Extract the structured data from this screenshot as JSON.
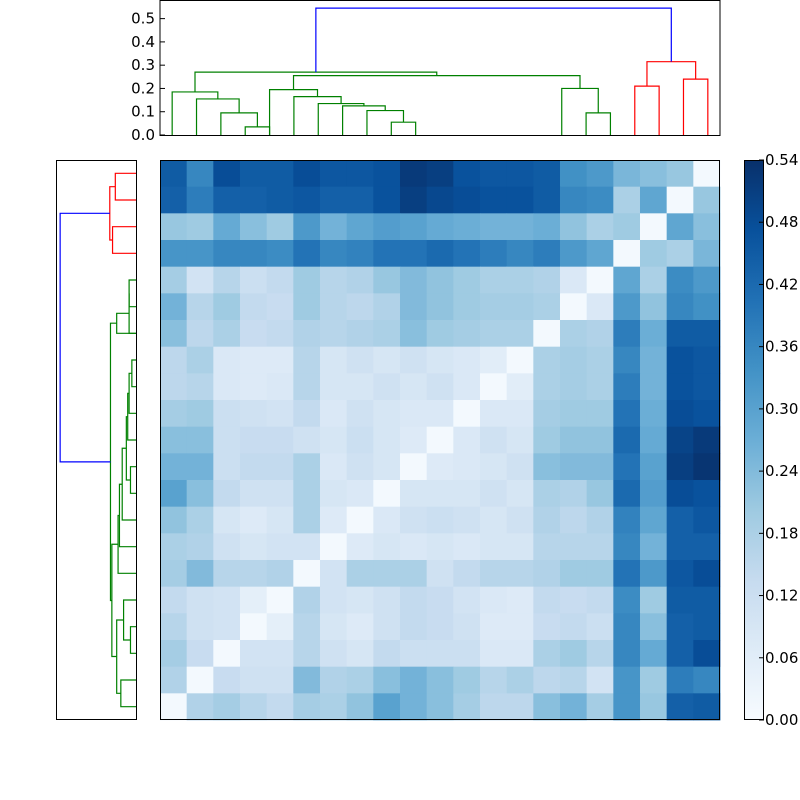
{
  "chart_data": [
    {
      "type": "dendrogram",
      "orientation": "top",
      "ylim": [
        0.0,
        0.58
      ],
      "yticks": [
        "0.0",
        "0.1",
        "0.2",
        "0.3",
        "0.4",
        "0.5"
      ],
      "ytick_values": [
        0.0,
        0.1,
        0.2,
        0.3,
        0.4,
        0.5
      ],
      "link_colors": {
        "green": "#008000",
        "red": "#ff0000",
        "blue": "#0000ff"
      },
      "links": [
        {
          "color": "green",
          "x": [
            1,
            1,
            2,
            2
          ],
          "y": [
            0.0,
            0.035,
            0.035,
            0.0
          ]
        },
        {
          "color": "green",
          "x": [
            0,
            0,
            1.5,
            1.5
          ],
          "y": [
            0.0,
            0.095,
            0.095,
            0.035
          ]
        },
        {
          "color": "green",
          "x": [
            -1,
            -1,
            0.75,
            0.75
          ],
          "y": [
            0.0,
            0.155,
            0.155,
            0.095
          ]
        },
        {
          "color": "green",
          "x": [
            -2,
            -2,
            -0.125,
            -0.125
          ],
          "y": [
            0.0,
            0.185,
            0.185,
            0.155
          ]
        },
        {
          "color": "green",
          "x": [
            7,
            7,
            8,
            8
          ],
          "y": [
            0.0,
            0.055,
            0.055,
            0.0
          ]
        },
        {
          "color": "green",
          "x": [
            6,
            6,
            7.5,
            7.5
          ],
          "y": [
            0.0,
            0.105,
            0.105,
            0.055
          ]
        },
        {
          "color": "green",
          "x": [
            5,
            5,
            6.75,
            6.75
          ],
          "y": [
            0.0,
            0.125,
            0.125,
            0.105
          ]
        },
        {
          "color": "green",
          "x": [
            4,
            4,
            5.875,
            5.875
          ],
          "y": [
            0.0,
            0.135,
            0.135,
            0.125
          ]
        },
        {
          "color": "green",
          "x": [
            3,
            3,
            4.9375,
            4.9375
          ],
          "y": [
            0.0,
            0.165,
            0.165,
            0.135
          ]
        },
        {
          "color": "green",
          "x": [
            2,
            2,
            3.96875,
            3.96875
          ],
          "y": [
            0.0,
            0.195,
            0.195,
            0.165
          ]
        },
        {
          "color": "green",
          "x": [
            15,
            15,
            16,
            16
          ],
          "y": [
            0.0,
            0.095,
            0.095,
            0.0
          ]
        },
        {
          "color": "green",
          "x": [
            14,
            14,
            15.5,
            15.5
          ],
          "y": [
            0.0,
            0.2,
            0.2,
            0.095
          ]
        },
        {
          "color": "green",
          "x": [
            2.984,
            2.984,
            14.75,
            14.75
          ],
          "y": [
            0.195,
            0.255,
            0.255,
            0.2
          ]
        },
        {
          "color": "green",
          "x": [
            -1.0625,
            -1.0625,
            8.867,
            8.867
          ],
          "y": [
            0.185,
            0.27,
            0.27,
            0.255
          ]
        },
        {
          "color": "red",
          "x": [
            17,
            17,
            18,
            18
          ],
          "y": [
            0.0,
            0.21,
            0.21,
            0.0
          ]
        },
        {
          "color": "red",
          "x": [
            19,
            19,
            20,
            20
          ],
          "y": [
            0.0,
            0.24,
            0.24,
            0.0
          ]
        },
        {
          "color": "red",
          "x": [
            17.5,
            17.5,
            19.5,
            19.5
          ],
          "y": [
            0.21,
            0.315,
            0.315,
            0.24
          ]
        },
        {
          "color": "blue",
          "x": [
            3.902,
            3.902,
            18.5,
            18.5
          ],
          "y": [
            0.27,
            0.545,
            0.545,
            0.315
          ]
        }
      ]
    },
    {
      "type": "dendrogram",
      "orientation": "left",
      "xlim": [
        0.58,
        0.0
      ],
      "link_colors": {
        "green": "#008000",
        "red": "#ff0000",
        "blue": "#0000ff"
      },
      "links": [
        {
          "color": "red",
          "y": [
            0,
            0,
            1,
            1
          ],
          "x": [
            0.0,
            0.15,
            0.15,
            0.0
          ]
        },
        {
          "color": "red",
          "y": [
            2,
            2,
            3,
            3
          ],
          "x": [
            0.0,
            0.17,
            0.17,
            0.0
          ]
        },
        {
          "color": "red",
          "y": [
            0.5,
            0.5,
            2.5,
            2.5
          ],
          "x": [
            0.15,
            0.19,
            0.19,
            0.17
          ]
        },
        {
          "color": "green",
          "y": [
            4,
            4,
            5,
            5
          ],
          "x": [
            0.0,
            0.05,
            0.05,
            0.0
          ]
        },
        {
          "color": "green",
          "y": [
            4.5,
            4.5,
            6,
            6
          ],
          "x": [
            0.05,
            0.05,
            0.05,
            0.0
          ]
        },
        {
          "color": "green",
          "y": [
            5.25,
            5.25,
            6,
            6
          ],
          "x": [
            0.05,
            0.14,
            0.14,
            0.0
          ]
        },
        {
          "color": "green",
          "y": [
            7,
            7,
            8,
            8
          ],
          "x": [
            0.0,
            0.03,
            0.03,
            0.0
          ]
        },
        {
          "color": "green",
          "y": [
            7.5,
            7.5,
            9,
            9
          ],
          "x": [
            0.03,
            0.05,
            0.05,
            0.0
          ]
        },
        {
          "color": "green",
          "y": [
            8.25,
            8.25,
            10,
            10
          ],
          "x": [
            0.05,
            0.06,
            0.06,
            0.0
          ]
        },
        {
          "color": "green",
          "y": [
            11,
            11,
            12,
            12
          ],
          "x": [
            0.0,
            0.04,
            0.04,
            0.0
          ]
        },
        {
          "color": "green",
          "y": [
            9.125,
            9.125,
            11.5,
            11.5
          ],
          "x": [
            0.06,
            0.07,
            0.07,
            0.04
          ]
        },
        {
          "color": "green",
          "y": [
            10.31,
            10.31,
            13,
            13
          ],
          "x": [
            0.07,
            0.1,
            0.1,
            0.0
          ]
        },
        {
          "color": "green",
          "y": [
            11.66,
            11.66,
            14,
            14
          ],
          "x": [
            0.1,
            0.12,
            0.12,
            0.0
          ]
        },
        {
          "color": "green",
          "y": [
            12.83,
            12.83,
            15,
            15
          ],
          "x": [
            0.12,
            0.13,
            0.13,
            0.0
          ]
        },
        {
          "color": "green",
          "y": [
            17,
            17,
            18,
            18
          ],
          "x": [
            0.0,
            0.04,
            0.04,
            0.0
          ]
        },
        {
          "color": "green",
          "y": [
            16,
            16,
            17.5,
            17.5
          ],
          "x": [
            0.0,
            0.09,
            0.09,
            0.04
          ]
        },
        {
          "color": "green",
          "y": [
            19,
            19,
            20,
            20
          ],
          "x": [
            0.0,
            0.11,
            0.11,
            0.0
          ]
        },
        {
          "color": "green",
          "y": [
            16.75,
            16.75,
            19.5,
            19.5
          ],
          "x": [
            0.09,
            0.14,
            0.14,
            0.11
          ]
        },
        {
          "color": "green",
          "y": [
            13.91,
            13.91,
            18.12,
            18.12
          ],
          "x": [
            0.13,
            0.175,
            0.175,
            0.14
          ]
        },
        {
          "color": "green",
          "y": [
            5.62,
            5.62,
            16.02,
            16.02
          ],
          "x": [
            0.14,
            0.185,
            0.185,
            0.175
          ]
        },
        {
          "color": "green",
          "y": [
            10.82,
            10.82,
            10.82,
            10.82
          ],
          "x": [
            0.185,
            0.185,
            0.185,
            0.185
          ]
        },
        {
          "color": "blue",
          "y": [
            1.5,
            1.5,
            10.82,
            10.82
          ],
          "x": [
            0.19,
            0.55,
            0.55,
            0.185
          ]
        }
      ]
    },
    {
      "type": "heatmap",
      "colormap": "Blues",
      "colormap_stops": [
        "#f7fbff",
        "#deebf7",
        "#c6dbef",
        "#9ecae1",
        "#6baed6",
        "#4292c6",
        "#2171b5",
        "#08519c",
        "#08306b"
      ],
      "vmin": 0.0,
      "vmax": 0.54,
      "n_rows": 21,
      "n_cols": 21,
      "values": [
        [
          0.45,
          0.36,
          0.48,
          0.45,
          0.45,
          0.48,
          0.46,
          0.46,
          0.47,
          0.52,
          0.51,
          0.47,
          0.46,
          0.46,
          0.45,
          0.34,
          0.32,
          0.25,
          0.23,
          0.21,
          0.01
        ],
        [
          0.44,
          0.38,
          0.44,
          0.44,
          0.45,
          0.46,
          0.44,
          0.44,
          0.47,
          0.51,
          0.49,
          0.48,
          0.47,
          0.47,
          0.45,
          0.36,
          0.35,
          0.18,
          0.29,
          0.01,
          0.21
        ],
        [
          0.21,
          0.2,
          0.28,
          0.23,
          0.2,
          0.32,
          0.26,
          0.29,
          0.31,
          0.3,
          0.28,
          0.27,
          0.26,
          0.26,
          0.27,
          0.22,
          0.18,
          0.2,
          0.01,
          0.29,
          0.23
        ],
        [
          0.33,
          0.33,
          0.36,
          0.36,
          0.35,
          0.4,
          0.36,
          0.37,
          0.4,
          0.4,
          0.42,
          0.4,
          0.38,
          0.36,
          0.38,
          0.32,
          0.29,
          0.01,
          0.2,
          0.18,
          0.25
        ],
        [
          0.19,
          0.1,
          0.16,
          0.12,
          0.14,
          0.2,
          0.16,
          0.17,
          0.21,
          0.24,
          0.22,
          0.2,
          0.18,
          0.18,
          0.17,
          0.08,
          0.01,
          0.29,
          0.18,
          0.35,
          0.32
        ],
        [
          0.26,
          0.16,
          0.2,
          0.14,
          0.13,
          0.2,
          0.16,
          0.15,
          0.17,
          0.24,
          0.22,
          0.2,
          0.19,
          0.19,
          0.18,
          0.01,
          0.08,
          0.32,
          0.22,
          0.36,
          0.34
        ],
        [
          0.23,
          0.15,
          0.18,
          0.13,
          0.14,
          0.17,
          0.16,
          0.17,
          0.18,
          0.23,
          0.2,
          0.19,
          0.18,
          0.18,
          0.01,
          0.18,
          0.17,
          0.38,
          0.27,
          0.45,
          0.45
        ],
        [
          0.15,
          0.18,
          0.08,
          0.07,
          0.07,
          0.16,
          0.09,
          0.11,
          0.09,
          0.11,
          0.09,
          0.08,
          0.06,
          0.01,
          0.18,
          0.19,
          0.18,
          0.36,
          0.26,
          0.47,
          0.46
        ],
        [
          0.15,
          0.16,
          0.08,
          0.07,
          0.08,
          0.16,
          0.09,
          0.09,
          0.11,
          0.09,
          0.11,
          0.08,
          0.01,
          0.06,
          0.18,
          0.19,
          0.18,
          0.38,
          0.26,
          0.47,
          0.46
        ],
        [
          0.19,
          0.2,
          0.12,
          0.11,
          0.1,
          0.14,
          0.08,
          0.11,
          0.09,
          0.08,
          0.08,
          0.01,
          0.08,
          0.08,
          0.19,
          0.2,
          0.2,
          0.4,
          0.27,
          0.48,
          0.47
        ],
        [
          0.23,
          0.23,
          0.12,
          0.13,
          0.13,
          0.11,
          0.09,
          0.12,
          0.09,
          0.07,
          0.01,
          0.08,
          0.11,
          0.09,
          0.2,
          0.22,
          0.22,
          0.42,
          0.28,
          0.5,
          0.52
        ],
        [
          0.26,
          0.26,
          0.12,
          0.14,
          0.14,
          0.18,
          0.08,
          0.11,
          0.09,
          0.01,
          0.07,
          0.08,
          0.09,
          0.11,
          0.23,
          0.24,
          0.24,
          0.4,
          0.3,
          0.51,
          0.53
        ],
        [
          0.3,
          0.23,
          0.14,
          0.11,
          0.11,
          0.18,
          0.09,
          0.08,
          0.01,
          0.09,
          0.09,
          0.09,
          0.11,
          0.09,
          0.18,
          0.17,
          0.21,
          0.42,
          0.31,
          0.48,
          0.47
        ],
        [
          0.22,
          0.18,
          0.09,
          0.07,
          0.09,
          0.18,
          0.07,
          0.01,
          0.08,
          0.11,
          0.12,
          0.11,
          0.09,
          0.11,
          0.17,
          0.15,
          0.17,
          0.37,
          0.29,
          0.44,
          0.46
        ],
        [
          0.18,
          0.17,
          0.11,
          0.09,
          0.1,
          0.1,
          0.01,
          0.07,
          0.09,
          0.08,
          0.09,
          0.08,
          0.09,
          0.09,
          0.16,
          0.16,
          0.16,
          0.36,
          0.26,
          0.44,
          0.44
        ],
        [
          0.19,
          0.24,
          0.16,
          0.16,
          0.17,
          0.01,
          0.1,
          0.18,
          0.18,
          0.18,
          0.11,
          0.14,
          0.16,
          0.16,
          0.17,
          0.2,
          0.2,
          0.4,
          0.32,
          0.46,
          0.48
        ],
        [
          0.14,
          0.11,
          0.1,
          0.05,
          0.01,
          0.17,
          0.1,
          0.09,
          0.11,
          0.14,
          0.13,
          0.1,
          0.08,
          0.07,
          0.14,
          0.13,
          0.14,
          0.35,
          0.2,
          0.45,
          0.45
        ],
        [
          0.16,
          0.11,
          0.1,
          0.01,
          0.05,
          0.16,
          0.09,
          0.07,
          0.11,
          0.14,
          0.13,
          0.11,
          0.07,
          0.07,
          0.13,
          0.14,
          0.12,
          0.36,
          0.23,
          0.44,
          0.45
        ],
        [
          0.19,
          0.13,
          0.01,
          0.1,
          0.1,
          0.16,
          0.11,
          0.09,
          0.14,
          0.12,
          0.12,
          0.12,
          0.08,
          0.08,
          0.18,
          0.2,
          0.16,
          0.36,
          0.28,
          0.44,
          0.48
        ],
        [
          0.17,
          0.01,
          0.13,
          0.11,
          0.11,
          0.24,
          0.17,
          0.18,
          0.23,
          0.26,
          0.23,
          0.2,
          0.16,
          0.18,
          0.15,
          0.16,
          0.1,
          0.33,
          0.2,
          0.38,
          0.36
        ],
        [
          0.01,
          0.17,
          0.19,
          0.16,
          0.14,
          0.19,
          0.18,
          0.22,
          0.3,
          0.26,
          0.23,
          0.19,
          0.15,
          0.15,
          0.23,
          0.26,
          0.19,
          0.33,
          0.21,
          0.44,
          0.45
        ]
      ]
    },
    {
      "type": "colorbar",
      "vmin": 0.0,
      "vmax": 0.54,
      "ticks": [
        "0.00",
        "0.06",
        "0.12",
        "0.18",
        "0.24",
        "0.30",
        "0.36",
        "0.42",
        "0.48",
        "0.54"
      ],
      "tick_values": [
        0.0,
        0.06,
        0.12,
        0.18,
        0.24,
        0.3,
        0.36,
        0.42,
        0.48,
        0.54
      ]
    }
  ]
}
